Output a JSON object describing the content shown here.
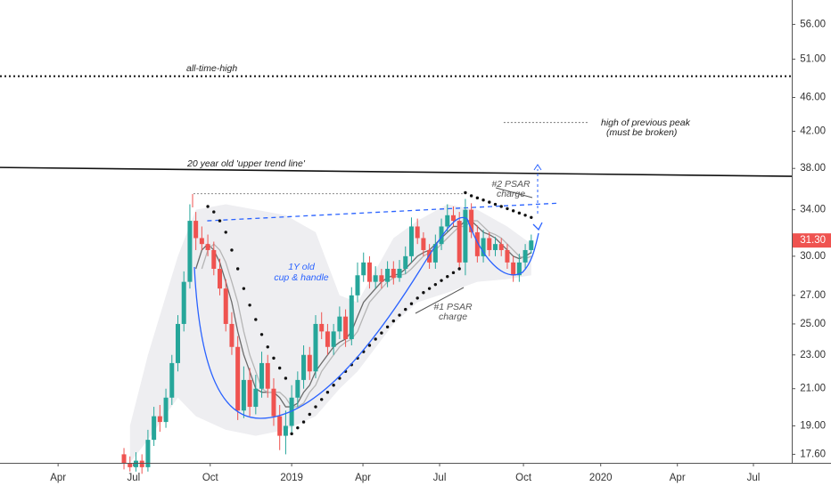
{
  "chart_data": {
    "type": "candlestick",
    "x": [
      11,
      12,
      13,
      14,
      15,
      16,
      17,
      18,
      19,
      20,
      21,
      22,
      23,
      24,
      25,
      26,
      27,
      28,
      29,
      30,
      31,
      32,
      33,
      34,
      35,
      36,
      37,
      38,
      39,
      40,
      41,
      42,
      43,
      44,
      45,
      46,
      47,
      48,
      49,
      50,
      51,
      52,
      53,
      54,
      55,
      56,
      57,
      58,
      59,
      60,
      61,
      62,
      63,
      64,
      65,
      66,
      67,
      68,
      69,
      70,
      71,
      72,
      73,
      74,
      75,
      76,
      77,
      78,
      79
    ],
    "open": [
      17.6,
      17.2,
      17.0,
      17.3,
      17.0,
      18.3,
      19.5,
      19.2,
      20.5,
      22.5,
      25.0,
      28.0,
      33.0,
      31.5,
      31.0,
      30.5,
      29.0,
      27.5,
      25.0,
      23.5,
      19.8,
      21.5,
      20.0,
      21.0,
      22.5,
      21.0,
      19.5,
      18.5,
      19.0,
      20.5,
      21.5,
      23.0,
      22.0,
      25.0,
      24.5,
      23.5,
      24.5,
      25.5,
      24.0,
      27.0,
      28.5,
      29.5,
      28.0,
      28.5,
      28.0,
      29.0,
      28.3,
      29.0,
      30.0,
      32.5,
      31.5,
      30.5,
      29.5,
      31.0,
      32.5,
      33.5,
      33.0,
      29.5,
      34.0,
      32.0,
      30.0,
      31.5,
      30.5,
      31.0,
      30.5,
      29.5,
      28.5,
      29.5,
      30.5
    ],
    "high": [
      17.9,
      17.5,
      17.7,
      17.6,
      18.8,
      20.0,
      20.1,
      21.0,
      23.0,
      25.6,
      28.8,
      34.5,
      33.8,
      32.5,
      31.8,
      31.2,
      29.8,
      28.2,
      25.8,
      24.2,
      22.3,
      22.2,
      21.8,
      23.2,
      23.0,
      21.6,
      20.1,
      19.8,
      21.2,
      22.0,
      23.6,
      23.5,
      25.6,
      25.8,
      25.0,
      25.0,
      26.2,
      26.0,
      27.6,
      29.5,
      30.3,
      30.0,
      29.2,
      29.0,
      29.6,
      29.6,
      29.7,
      30.8,
      33.3,
      33.2,
      32.0,
      31.0,
      31.8,
      33.2,
      34.5,
      34.3,
      33.8,
      35.0,
      34.6,
      32.6,
      32.2,
      32.0,
      31.6,
      31.5,
      31.0,
      30.0,
      30.2,
      31.0,
      31.8
    ],
    "low": [
      16.9,
      16.8,
      16.8,
      16.7,
      16.8,
      18.0,
      18.7,
      18.9,
      20.1,
      22.0,
      24.5,
      27.5,
      30.5,
      30.5,
      30.0,
      28.5,
      27.0,
      24.5,
      23.0,
      19.3,
      19.4,
      19.5,
      19.6,
      20.5,
      20.5,
      19.0,
      17.8,
      17.6,
      18.6,
      20.0,
      21.0,
      21.5,
      21.6,
      24.0,
      23.0,
      23.0,
      24.0,
      23.5,
      23.6,
      26.5,
      28.0,
      27.5,
      27.5,
      27.5,
      27.6,
      27.8,
      28.0,
      28.6,
      29.5,
      31.0,
      30.0,
      29.0,
      29.0,
      30.5,
      32.0,
      32.5,
      29.0,
      28.5,
      31.5,
      29.5,
      29.5,
      30.0,
      30.0,
      30.0,
      29.0,
      28.0,
      28.0,
      29.0,
      30.2
    ],
    "close": [
      17.2,
      17.0,
      17.3,
      17.0,
      18.3,
      19.5,
      19.2,
      20.5,
      22.5,
      25.0,
      28.0,
      33.0,
      31.5,
      31.0,
      30.5,
      29.0,
      27.5,
      25.0,
      23.5,
      19.8,
      21.5,
      20.0,
      21.0,
      22.5,
      21.0,
      19.5,
      18.5,
      19.0,
      20.5,
      21.5,
      23.0,
      22.0,
      25.0,
      24.5,
      23.5,
      24.5,
      25.5,
      24.0,
      27.0,
      28.5,
      29.5,
      28.0,
      28.5,
      28.0,
      29.0,
      28.3,
      29.0,
      30.0,
      32.5,
      31.5,
      30.5,
      29.5,
      31.0,
      32.5,
      33.5,
      33.0,
      29.5,
      34.0,
      32.0,
      30.0,
      31.5,
      30.5,
      31.0,
      30.5,
      29.5,
      28.5,
      29.5,
      30.5,
      31.3
    ],
    "up_color": "#26a69a",
    "down_color": "#ef5350",
    "series": [
      {
        "color": "#6b6b6b",
        "values": [
          null,
          null,
          null,
          null,
          null,
          null,
          null,
          null,
          null,
          null,
          null,
          null,
          29,
          30.5,
          31,
          30.5,
          29.5,
          28,
          26.5,
          24.5,
          23,
          22,
          21,
          20.8,
          20.8,
          20.8,
          20.5,
          20,
          20,
          20.2,
          20.8,
          21.2,
          22,
          22.5,
          23,
          23.5,
          23.8,
          24,
          24.5,
          25.5,
          26.5,
          27,
          27.5,
          28,
          28.3,
          28.5,
          28.6,
          29,
          29.5,
          30,
          30.3,
          30.5,
          31,
          31.5,
          32,
          32.5,
          32.5,
          33,
          33,
          32.5,
          32,
          31.8,
          31.5,
          31,
          30.5,
          30,
          29.8,
          30,
          30.3
        ]
      },
      {
        "color": "#b5b5b5",
        "values": [
          null,
          null,
          null,
          null,
          null,
          null,
          null,
          null,
          null,
          null,
          null,
          null,
          null,
          29,
          30.5,
          31,
          30.5,
          29.5,
          28,
          26.5,
          24.5,
          23,
          22,
          21,
          20.8,
          20.8,
          20.8,
          20.5,
          20,
          20,
          20.2,
          20.8,
          21.2,
          22,
          22.5,
          23,
          23.5,
          23.8,
          24,
          24.5,
          25.5,
          26.5,
          27,
          27.5,
          28,
          28.3,
          28.5,
          28.6,
          29,
          29.5,
          30,
          30.3,
          30.5,
          31,
          31.5,
          32,
          32.5,
          32.5,
          33,
          33,
          32.5,
          32,
          31.8,
          31.5,
          31,
          30.5,
          30,
          29.8,
          30
        ]
      }
    ],
    "psar": {
      "color": "#111111",
      "x": [
        25,
        26,
        27,
        28,
        29,
        30,
        31,
        32,
        33,
        34,
        35,
        36,
        37,
        38,
        39,
        40,
        41,
        42,
        43,
        44,
        45,
        46,
        47,
        48,
        49,
        50,
        51,
        52,
        53,
        54,
        55,
        56,
        57,
        58,
        59,
        60,
        61,
        62,
        63,
        64,
        65,
        66,
        67,
        68,
        69,
        70,
        71,
        72,
        73,
        74,
        75,
        76,
        77,
        78,
        79
      ],
      "values": [
        34.3,
        33.8,
        33,
        32,
        30.5,
        29,
        27.5,
        26.3,
        25.3,
        24.3,
        23.5,
        22.8,
        22.2,
        21.6,
        18.6,
        18.9,
        19.2,
        19.6,
        20.0,
        20.4,
        20.8,
        21.2,
        21.6,
        22.0,
        22.4,
        22.8,
        23.2,
        23.6,
        24.0,
        24.4,
        24.8,
        25.2,
        25.6,
        26.0,
        26.4,
        26.8,
        27.2,
        27.5,
        27.8,
        28.1,
        28.4,
        28.7,
        29.0,
        35.6,
        35.3,
        35.1,
        34.9,
        34.7,
        34.5,
        34.3,
        34.1,
        33.9,
        33.7,
        33.5,
        33.3
      ]
    },
    "band": {
      "color": "#eeeef1",
      "x": [
        12,
        15,
        20,
        23,
        28,
        33,
        38,
        43,
        47,
        50,
        56,
        60,
        65,
        70,
        75,
        79
      ],
      "upper": [
        19,
        23,
        30,
        34,
        34.5,
        34,
        33.5,
        32,
        27,
        26.5,
        31.5,
        33,
        34.5,
        34,
        32.5,
        31
      ],
      "lower": [
        17.2,
        18.3,
        20.5,
        19.5,
        18.8,
        18.5,
        18.8,
        19.5,
        21,
        22,
        25,
        26.5,
        27.2,
        28,
        28.2,
        28.5
      ]
    },
    "log_scale": true,
    "xlim": [
      -9.7,
      122.5
    ],
    "xticks": [
      {
        "value": 0,
        "label": "Apr"
      },
      {
        "value": 12.6,
        "label": "Jul"
      },
      {
        "value": 25.4,
        "label": "Oct"
      },
      {
        "value": 39,
        "label": "2019"
      },
      {
        "value": 50.9,
        "label": "Apr"
      },
      {
        "value": 63.7,
        "label": "Jul"
      },
      {
        "value": 77.7,
        "label": "Oct"
      },
      {
        "value": 90.6,
        "label": "2020"
      },
      {
        "value": 103.4,
        "label": "Apr"
      },
      {
        "value": 116.1,
        "label": "Jul"
      }
    ],
    "ylim": [
      17.2,
      59.8
    ],
    "yticks": [
      {
        "value": 17.6,
        "label": "17.60"
      },
      {
        "value": 19,
        "label": "19.00"
      },
      {
        "value": 21,
        "label": "21.00"
      },
      {
        "value": 23,
        "label": "23.00"
      },
      {
        "value": 25,
        "label": "25.00"
      },
      {
        "value": 27,
        "label": "27.00"
      },
      {
        "value": 30,
        "label": "30.00"
      },
      {
        "value": 34,
        "label": "34.00"
      },
      {
        "value": 38,
        "label": "38.00"
      },
      {
        "value": 42,
        "label": "42.00"
      },
      {
        "value": 46,
        "label": "46.00"
      },
      {
        "value": 51,
        "label": "51.00"
      },
      {
        "value": 56,
        "label": "56.00"
      }
    ],
    "last_price": {
      "value": 31.3,
      "label": "31.30"
    },
    "ath_level": 48.7,
    "trend_line": [
      38.1,
      37.2
    ],
    "previous_peak": {
      "x": [
        22.6,
        68.5
      ],
      "value": 35.5
    },
    "neckline": {
      "x": [
        24.9,
        83.3
      ],
      "values": [
        33,
        34.6
      ]
    },
    "target": {
      "x": [
        74.4,
        88.5
      ],
      "value": 43
    },
    "annotations": {
      "ath": "all-time-high",
      "trend": "20 year old 'upper trend line'",
      "peak": [
        "high of previous peak",
        "(must be broken)"
      ],
      "psar2": [
        "#2 PSAR",
        "charge"
      ],
      "cup": [
        "1Y old",
        "cup & handle"
      ],
      "psar1": [
        "#1 PSAR",
        "charge"
      ]
    }
  }
}
